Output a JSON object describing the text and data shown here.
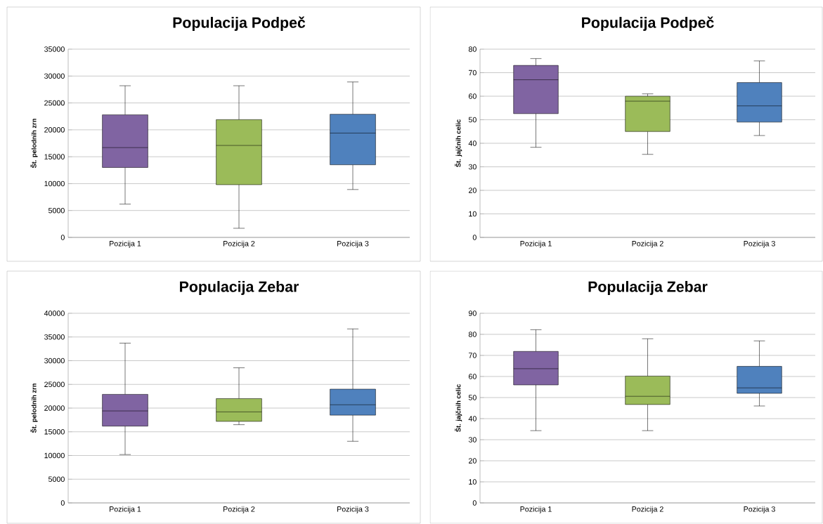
{
  "chart_data": [
    {
      "type": "box",
      "title": "Populacija Podpeč",
      "ylabel": "Št. pelodnih zrn",
      "categories": [
        "Pozicija 1",
        "Pozicija 2",
        "Pozicija 3"
      ],
      "colors": [
        "#8064a2",
        "#9bbb59",
        "#4f81bd"
      ],
      "ylim": [
        0,
        35000
      ],
      "yticks": [
        0,
        5000,
        10000,
        15000,
        20000,
        25000,
        30000,
        35000
      ],
      "grid": "y",
      "boxes": [
        {
          "low": 6200,
          "q1": 13000,
          "median": 16700,
          "q3": 22800,
          "high": 28200
        },
        {
          "low": 1700,
          "q1": 9800,
          "median": 17100,
          "q3": 21900,
          "high": 28200
        },
        {
          "low": 8900,
          "q1": 13500,
          "median": 19400,
          "q3": 22900,
          "high": 28900
        }
      ]
    },
    {
      "type": "box",
      "title": "Populacija Podpeč",
      "ylabel": "Št. jajčnih celic",
      "categories": [
        "Pozicija 1",
        "Pozicija 2",
        "Pozicija 3"
      ],
      "colors": [
        "#8064a2",
        "#9bbb59",
        "#4f81bd"
      ],
      "ylim": [
        0,
        80
      ],
      "yticks": [
        0,
        10,
        20,
        30,
        40,
        50,
        60,
        70,
        80
      ],
      "grid": "y",
      "boxes": [
        {
          "low": 38.3,
          "q1": 52.6,
          "median": 67,
          "q3": 73.1,
          "high": 76
        },
        {
          "low": 35.3,
          "q1": 45,
          "median": 57.9,
          "q3": 60,
          "high": 61
        },
        {
          "low": 43.3,
          "q1": 49,
          "median": 55.9,
          "q3": 65.8,
          "high": 75
        }
      ]
    },
    {
      "type": "box",
      "title": "Populacija Zebar",
      "ylabel": "Št. pelodnih zrn",
      "categories": [
        "Pozicija 1",
        "Pozicija 2",
        "Pozicija 3"
      ],
      "colors": [
        "#8064a2",
        "#9bbb59",
        "#4f81bd"
      ],
      "ylim": [
        0,
        40000
      ],
      "yticks": [
        0,
        5000,
        10000,
        15000,
        20000,
        25000,
        30000,
        35000,
        40000
      ],
      "grid": "y",
      "boxes": [
        {
          "low": 10200,
          "q1": 16200,
          "median": 19400,
          "q3": 22900,
          "high": 33700
        },
        {
          "low": 16500,
          "q1": 17200,
          "median": 19200,
          "q3": 22000,
          "high": 28500
        },
        {
          "low": 13000,
          "q1": 18500,
          "median": 20700,
          "q3": 24000,
          "high": 36700
        }
      ]
    },
    {
      "type": "box",
      "title": "Populacija Zebar",
      "ylabel": "Št. jajčnih celic",
      "categories": [
        "Pozicija 1",
        "Pozicija 2",
        "Pozicija 3"
      ],
      "colors": [
        "#8064a2",
        "#9bbb59",
        "#4f81bd"
      ],
      "ylim": [
        0,
        90
      ],
      "yticks": [
        0,
        10,
        20,
        30,
        40,
        50,
        60,
        70,
        80,
        90
      ],
      "grid": "y",
      "boxes": [
        {
          "low": 34.3,
          "q1": 56,
          "median": 63.7,
          "q3": 71.9,
          "high": 82.2
        },
        {
          "low": 34.3,
          "q1": 46.7,
          "median": 50.6,
          "q3": 60.2,
          "high": 77.9
        },
        {
          "low": 46,
          "q1": 52,
          "median": 54.6,
          "q3": 64.8,
          "high": 76.9
        }
      ]
    }
  ]
}
